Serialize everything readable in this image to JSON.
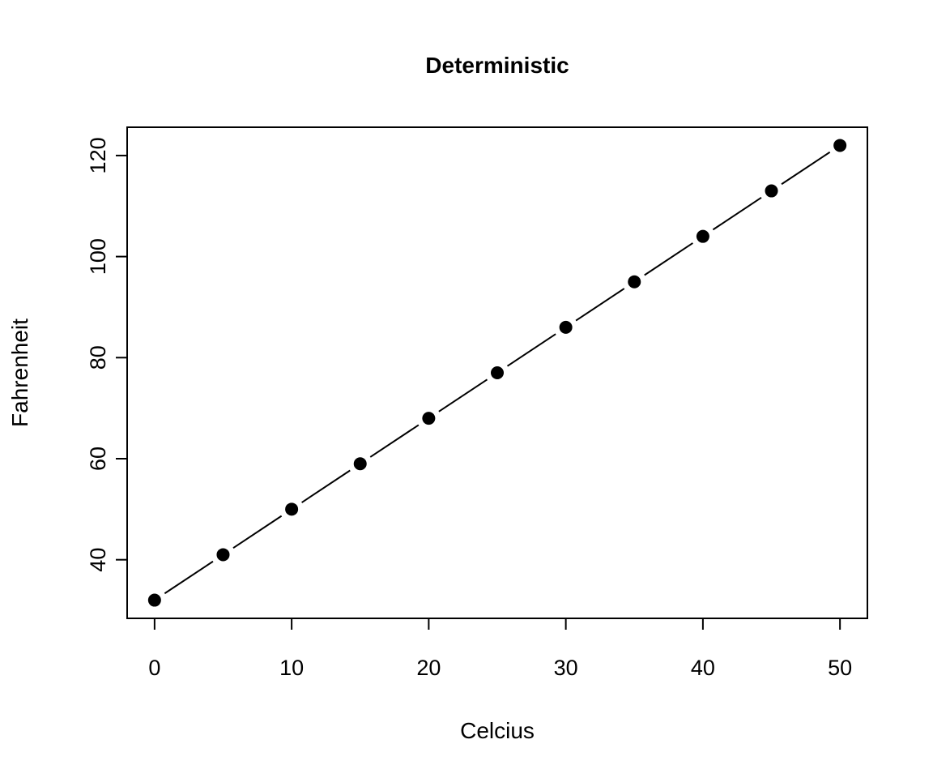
{
  "chart_data": {
    "type": "line",
    "title": "Deterministic",
    "xlabel": "Celcius",
    "ylabel": "Fahrenheit",
    "x": [
      0,
      5,
      10,
      15,
      20,
      25,
      30,
      35,
      40,
      45,
      50
    ],
    "series": [
      {
        "values": [
          32,
          41,
          50,
          59,
          68,
          77,
          86,
          95,
          104,
          113,
          122
        ]
      }
    ],
    "xlim": [
      -2,
      52
    ],
    "ylim": [
      28.4,
      125.6
    ],
    "xticks": [
      0,
      10,
      20,
      30,
      40,
      50
    ],
    "yticks": [
      40,
      60,
      80,
      100,
      120
    ],
    "grid": false,
    "legend": "none",
    "line_style": "segments with gaps at points",
    "marker": "filled-circle",
    "colors": {
      "line": "#000000",
      "marker": "#000000",
      "background": "#ffffff"
    }
  }
}
